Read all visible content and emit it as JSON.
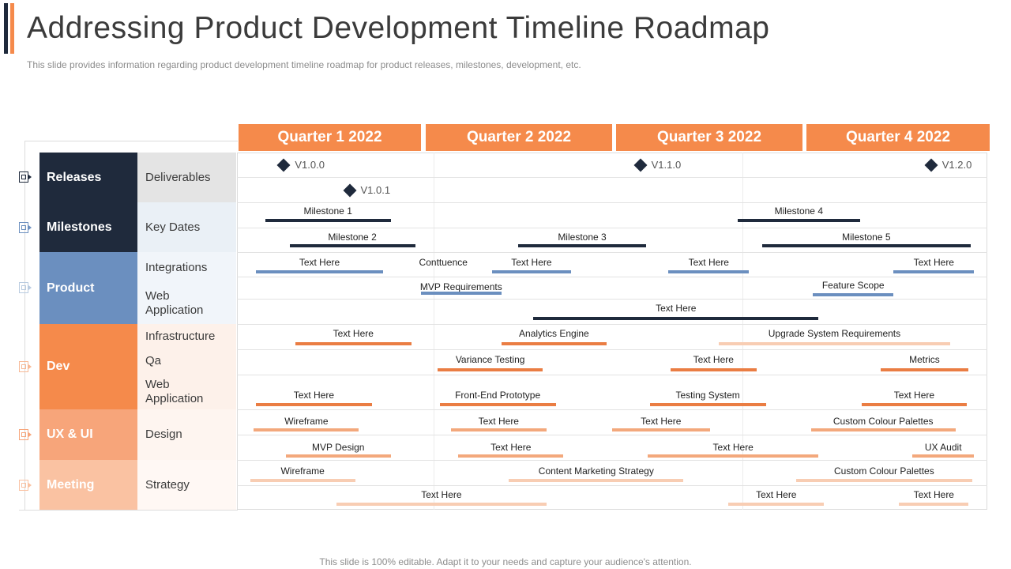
{
  "header": {
    "title": "Addressing Product Development Timeline Roadmap",
    "subtitle": "This slide provides information regarding product development timeline roadmap for product releases, milestones, development, etc."
  },
  "footer": "This slide is 100% editable. Adapt it to your needs and capture your audience's attention.",
  "colors": {
    "navy": "#1f2a3c",
    "steel_blue": "#6b8fbf",
    "orange": "#f58a4b",
    "light_orange": "#f7a57a",
    "pale_orange": "#fac2a2",
    "bar_navy": "#1f2a3c",
    "bar_blue": "#6b8fbf",
    "bar_orange": "#ea7d43",
    "bar_light": "#f3a87c",
    "bar_pale": "#f8cdb3"
  },
  "quarters": [
    "Quarter 1 2022",
    "Quarter 2 2022",
    "Quarter 3 2022",
    "Quarter 4 2022"
  ],
  "categories": [
    {
      "label": "Releases",
      "icon": "target-icon",
      "subs": [
        "Deliverables"
      ]
    },
    {
      "label": "Milestones",
      "icon": "target-icon",
      "subs": [
        "Key Dates"
      ]
    },
    {
      "label": "Product",
      "icon": "target-icon",
      "subs": [
        "Integrations",
        "Web Application"
      ]
    },
    {
      "label": "Dev",
      "icon": "target-icon",
      "subs": [
        "Infrastructure",
        "Qa",
        "Web Application"
      ]
    },
    {
      "label": "UX & UI",
      "icon": "target-icon",
      "subs": [
        "Design"
      ]
    },
    {
      "label": "Meeting",
      "icon": "target-icon",
      "subs": [
        "Strategy"
      ]
    }
  ],
  "chart_data": {
    "type": "gantt",
    "title": "Addressing Product Development Timeline Roadmap",
    "time_axis": "quarters of 2022 (0 = start of Q1, 4 = end of Q4)",
    "releases": [
      {
        "label": "V1.0.0",
        "at": 0.25
      },
      {
        "label": "V1.0.1",
        "at": 0.6
      },
      {
        "label": "V1.1.0",
        "at": 2.15
      },
      {
        "label": "V1.2.0",
        "at": 3.7
      }
    ],
    "tasks": [
      {
        "group": "Milestones",
        "label": "Milestone 1",
        "start": 0.15,
        "end": 0.82
      },
      {
        "group": "Milestones",
        "label": "Milestone 4",
        "start": 2.67,
        "end": 3.32
      },
      {
        "group": "Milestones",
        "label": "Milestone 2",
        "start": 0.28,
        "end": 0.95
      },
      {
        "group": "Milestones",
        "label": "Milestone 3",
        "start": 1.5,
        "end": 2.18
      },
      {
        "group": "Milestones",
        "label": "Milestone 5",
        "start": 2.8,
        "end": 3.91
      },
      {
        "group": "Product",
        "label": "Text Here",
        "start": 0.1,
        "end": 0.78
      },
      {
        "group": "Product",
        "label": "Conttuence",
        "start": 1.1,
        "end": 1.1
      },
      {
        "group": "Product",
        "label": "Text Here",
        "start": 1.36,
        "end": 1.78
      },
      {
        "group": "Product",
        "label": "Text Here",
        "start": 2.3,
        "end": 2.73
      },
      {
        "group": "Product",
        "label": "Text Here",
        "start": 3.5,
        "end": 3.93
      },
      {
        "group": "Product",
        "label": "MVP Requirements",
        "start": 0.98,
        "end": 1.41
      },
      {
        "group": "Product",
        "label": "Feature Scope",
        "start": 3.07,
        "end": 3.5
      },
      {
        "group": "Product",
        "label": "Text Here",
        "start": 1.58,
        "end": 3.1
      },
      {
        "group": "Dev",
        "label": "Text Here",
        "start": 0.31,
        "end": 0.93
      },
      {
        "group": "Dev",
        "label": "Analytics Engine",
        "start": 1.41,
        "end": 1.97
      },
      {
        "group": "Dev",
        "label": "Upgrade System Requirements",
        "start": 2.57,
        "end": 3.8
      },
      {
        "group": "Dev",
        "label": "Variance Testing",
        "start": 1.07,
        "end": 1.63
      },
      {
        "group": "Dev",
        "label": "Text Here",
        "start": 2.31,
        "end": 2.77
      },
      {
        "group": "Dev",
        "label": "Metrics",
        "start": 3.43,
        "end": 3.9
      },
      {
        "group": "Dev",
        "label": "Text Here",
        "start": 0.1,
        "end": 0.72
      },
      {
        "group": "Dev",
        "label": "Front-End Prototype",
        "start": 1.08,
        "end": 1.7
      },
      {
        "group": "Dev",
        "label": "Testing System",
        "start": 2.2,
        "end": 2.82
      },
      {
        "group": "Dev",
        "label": "Text Here",
        "start": 3.33,
        "end": 3.89
      },
      {
        "group": "UX & UI",
        "label": "Wireframe",
        "start": 0.09,
        "end": 0.65
      },
      {
        "group": "UX & UI",
        "label": "Text Here",
        "start": 1.14,
        "end": 1.65
      },
      {
        "group": "UX & UI",
        "label": "Text Here",
        "start": 2.0,
        "end": 2.52
      },
      {
        "group": "UX & UI",
        "label": "Custom Colour Palettes",
        "start": 3.06,
        "end": 3.83
      },
      {
        "group": "UX & UI",
        "label": "MVP Design",
        "start": 0.26,
        "end": 0.82
      },
      {
        "group": "UX & UI",
        "label": "Text Here",
        "start": 1.18,
        "end": 1.74
      },
      {
        "group": "UX & UI",
        "label": "Text Here",
        "start": 2.19,
        "end": 3.1
      },
      {
        "group": "UX & UI",
        "label": "UX Audit",
        "start": 3.6,
        "end": 3.93
      },
      {
        "group": "Meeting",
        "label": "Wireframe",
        "start": 0.07,
        "end": 0.63
      },
      {
        "group": "Meeting",
        "label": "Content Marketing Strategy",
        "start": 1.45,
        "end": 2.38
      },
      {
        "group": "Meeting",
        "label": "Custom Colour Palettes",
        "start": 2.98,
        "end": 3.92
      },
      {
        "group": "Meeting",
        "label": "Text Here",
        "start": 0.53,
        "end": 1.65
      },
      {
        "group": "Meeting",
        "label": "Text Here",
        "start": 2.62,
        "end": 3.13
      },
      {
        "group": "Meeting",
        "label": "Text Here",
        "start": 3.53,
        "end": 3.9
      }
    ]
  }
}
